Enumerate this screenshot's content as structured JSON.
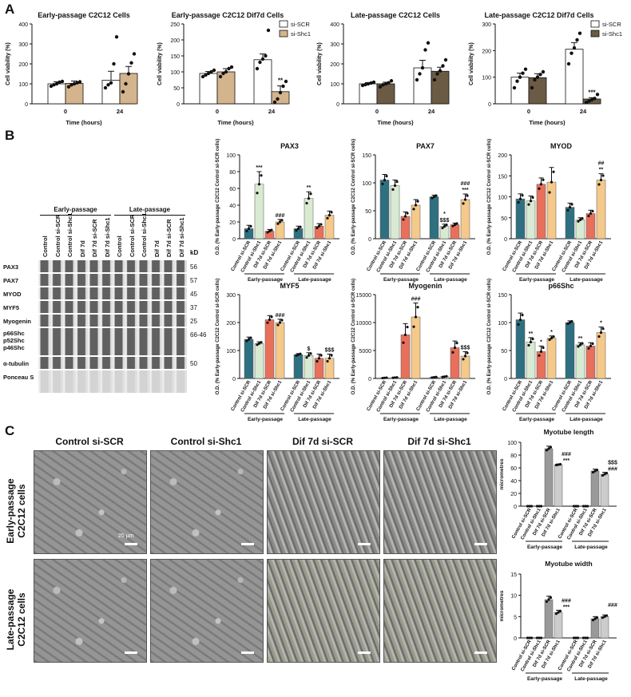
{
  "panel_labels": {
    "a": "A",
    "b": "B",
    "c": "C"
  },
  "viability": {
    "ylabel": "Cell viability (%)",
    "xlabel": "Time (hours)",
    "xticks": [
      "0",
      "24"
    ],
    "legend": [
      "si-SCR",
      "si-Shc1"
    ],
    "colors": {
      "scr": "#ffffff",
      "shc1_early": "#d4b48c",
      "shc1_late": "#6b5b45"
    },
    "charts": [
      {
        "title": "Early-passage C2C12 Cells",
        "ylim": [
          0,
          400
        ],
        "yticks": [
          "0",
          "100",
          "200",
          "300",
          "400"
        ],
        "values": [
          [
            100,
            102
          ],
          [
            118,
            152
          ]
        ],
        "errors": [
          [
            10,
            12
          ],
          [
            45,
            35
          ]
        ],
        "points": [
          [
            [
              88,
              95,
              100,
              108,
              112
            ],
            [
              85,
              95,
              100,
              105,
              110
            ]
          ],
          [
            [
              80,
              95,
              105,
              200,
              335
            ],
            [
              60,
              100,
              150,
              205,
              250
            ]
          ]
        ],
        "marks": [
          "",
          ""
        ],
        "legend": false,
        "dark": false
      },
      {
        "title": "Early-passage C2C12 Dif7d Cells",
        "ylim": [
          0,
          250
        ],
        "yticks": [
          "0",
          "50",
          "100",
          "150",
          "200",
          "250"
        ],
        "values": [
          [
            95,
            100
          ],
          [
            138,
            38
          ]
        ],
        "errors": [
          [
            6,
            10
          ],
          [
            18,
            18
          ]
        ],
        "points": [
          [
            [
              85,
              90,
              95,
              100,
              105
            ],
            [
              85,
              95,
              100,
              110,
              115
            ]
          ],
          [
            [
              110,
              130,
              140,
              150,
              230
            ],
            [
              5,
              15,
              35,
              55,
              70
            ]
          ]
        ],
        "marks": [
          "",
          "**"
        ],
        "legend": true,
        "dark": false
      },
      {
        "title": "Late-passage C2C12 Cells",
        "ylim": [
          0,
          400
        ],
        "yticks": [
          "0",
          "100",
          "200",
          "300",
          "400"
        ],
        "values": [
          [
            100,
            100
          ],
          [
            180,
            163
          ]
        ],
        "errors": [
          [
            6,
            8
          ],
          [
            38,
            20
          ]
        ],
        "points": [
          [
            [
              92,
              96,
              100,
              104,
              108
            ],
            [
              85,
              95,
              100,
              105,
              115
            ]
          ],
          [
            [
              120,
              150,
              180,
              270,
              305
            ],
            [
              120,
              150,
              165,
              190,
              220
            ]
          ]
        ],
        "marks": [
          "",
          ""
        ],
        "legend": false,
        "dark": true
      },
      {
        "title": "Late-passage C2C12 Dif7d Cells",
        "ylim": [
          0,
          300
        ],
        "yticks": [
          "0",
          "100",
          "200",
          "300"
        ],
        "values": [
          [
            100,
            98
          ],
          [
            205,
            18
          ]
        ],
        "errors": [
          [
            15,
            15
          ],
          [
            25,
            5
          ]
        ],
        "points": [
          [
            [
              60,
              85,
              100,
              115,
              130
            ],
            [
              60,
              90,
              100,
              110,
              120
            ]
          ],
          [
            [
              150,
              190,
              210,
              240,
              265
            ],
            [
              5,
              10,
              15,
              20,
              35
            ]
          ]
        ],
        "marks": [
          "",
          "***"
        ],
        "legend": true,
        "dark": true
      }
    ]
  },
  "blot": {
    "groups": [
      "Early-passage",
      "Late-passage"
    ],
    "lanes": [
      "Control",
      "Control si-SCR",
      "Control si-Shc1",
      "Dif 7d",
      "Dif 7d si-SCR",
      "Dif 7d si-Shc1",
      "Control",
      "Control si-SCR",
      "Control si-Shc1",
      "Dif 7d",
      "Dif 7d si-SCR",
      "Dif 7d si-Shc1"
    ],
    "kd_label": "kD",
    "rows": [
      {
        "name": "PAX3",
        "kd": "56"
      },
      {
        "name": "PAX7",
        "kd": "57"
      },
      {
        "name": "MYOD",
        "kd": "45"
      },
      {
        "name": "MYF5",
        "kd": "37"
      },
      {
        "name": "Myogenin",
        "kd": "25"
      },
      {
        "name": "p66Shc\np52Shc\np46Shc",
        "kd": "66-46"
      },
      {
        "name": "α-tubulin",
        "kd": "50"
      },
      {
        "name": "Ponceau S",
        "kd": ""
      }
    ]
  },
  "od_charts": {
    "ylabel": "O.D. (% Early-passage C2C12 Control si-SCR cells)",
    "categories": [
      "Control si-SCR",
      "Control si-Shc1",
      "Dif 7d si-SCR",
      "Dif 7d si-Shc1"
    ],
    "groups": [
      "Early-passage",
      "Late-passage"
    ],
    "colors": [
      "#2e7080",
      "#d8ebd2",
      "#e8705a",
      "#f5c98a"
    ],
    "charts": [
      {
        "title": "PAX3",
        "ylim": [
          0,
          100
        ],
        "yticks": [
          "0",
          "20",
          "40",
          "60",
          "80",
          "100"
        ],
        "values": [
          [
            12,
            65,
            9,
            20
          ],
          [
            12,
            48,
            15,
            28
          ]
        ],
        "errors": [
          [
            4,
            15,
            2,
            3
          ],
          [
            3,
            8,
            3,
            5
          ]
        ],
        "marks": [
          [
            "",
            "***",
            "",
            "###"
          ],
          [
            "",
            "**",
            "",
            ""
          ]
        ]
      },
      {
        "title": "PAX7",
        "ylim": [
          0,
          150
        ],
        "yticks": [
          "0",
          "50",
          "100",
          "150"
        ],
        "values": [
          [
            105,
            95,
            40,
            60
          ],
          [
            75,
            22,
            25,
            70
          ]
        ],
        "errors": [
          [
            10,
            10,
            8,
            10
          ],
          [
            3,
            4,
            3,
            10
          ]
        ],
        "marks": [
          [
            "",
            "",
            "",
            ""
          ],
          [
            "",
            "*\n$$$",
            "",
            "###\n***"
          ]
        ]
      },
      {
        "title": "MYOD",
        "ylim": [
          0,
          200
        ],
        "yticks": [
          "0",
          "50",
          "100",
          "150",
          "200"
        ],
        "values": [
          [
            95,
            90,
            130,
            135
          ],
          [
            75,
            45,
            60,
            140
          ]
        ],
        "errors": [
          [
            12,
            12,
            15,
            35
          ],
          [
            10,
            5,
            8,
            15
          ]
        ],
        "marks": [
          [
            "",
            "",
            "",
            ""
          ],
          [
            "",
            "",
            "",
            "##\n**"
          ]
        ]
      },
      {
        "title": "MYF5",
        "ylim": [
          0,
          300
        ],
        "yticks": [
          "0",
          "100",
          "200",
          "300"
        ],
        "values": [
          [
            140,
            125,
            210,
            200
          ],
          [
            85,
            82,
            72,
            72
          ]
        ],
        "errors": [
          [
            8,
            6,
            15,
            12
          ],
          [
            4,
            10,
            15,
            15
          ]
        ],
        "marks": [
          [
            "",
            "",
            "",
            "###"
          ],
          [
            "",
            "$",
            "",
            "$$$"
          ]
        ]
      },
      {
        "title": "Myogenin",
        "ylim": [
          0,
          15000
        ],
        "yticks": [
          "0",
          "5000",
          "10000",
          "15000"
        ],
        "values": [
          [
            100,
            150,
            7800,
            11000
          ],
          [
            200,
            300,
            5500,
            4000
          ]
        ],
        "errors": [
          [
            50,
            50,
            2000,
            2500
          ],
          [
            80,
            100,
            1200,
            800
          ]
        ],
        "marks": [
          [
            "",
            "",
            "",
            "###"
          ],
          [
            "",
            "",
            "",
            "$$$"
          ]
        ]
      },
      {
        "title": "p66Shc",
        "ylim": [
          0,
          150
        ],
        "yticks": [
          "0",
          "50",
          "100",
          "150"
        ],
        "values": [
          [
            105,
            65,
            48,
            72
          ],
          [
            100,
            60,
            58,
            82
          ]
        ],
        "errors": [
          [
            12,
            8,
            10,
            4
          ],
          [
            3,
            4,
            6,
            10
          ]
        ],
        "marks": [
          [
            "",
            "**",
            "*",
            "*"
          ],
          [
            "",
            "**",
            "",
            "*"
          ]
        ]
      }
    ]
  },
  "micrographs": {
    "columns": [
      "Control si-SCR",
      "Control si-Shc1",
      "Dif 7d si-SCR",
      "Dif 7d si-Shc1"
    ],
    "rows": [
      "Early-passage\nC2C12 cells",
      "Late-passage\nC2C12 cells"
    ],
    "scale_label": "25 µm"
  },
  "myotube": {
    "categories": [
      "Control si-SCR",
      "Control si-Shc1",
      "Dif 7d si-SCR",
      "Dif 7d si-Shc1"
    ],
    "groups": [
      "Early-passage",
      "Late-passage"
    ],
    "ylabel": "micrometres",
    "charts": [
      {
        "title": "Myotube length",
        "ylim": [
          0,
          100
        ],
        "yticks": [
          "0",
          "20",
          "40",
          "60",
          "80",
          "100"
        ],
        "values": [
          [
            0,
            0,
            90,
            65
          ],
          [
            0,
            0,
            55,
            50
          ]
        ],
        "errors": [
          [
            0,
            0,
            4,
            1
          ],
          [
            0,
            0,
            3,
            3
          ]
        ],
        "marks": [
          [
            "",
            "",
            "",
            "###\n***"
          ],
          [
            "",
            "",
            "",
            "$$$\n###"
          ]
        ]
      },
      {
        "title": "Myotube width",
        "ylim": [
          0,
          15
        ],
        "yticks": [
          "0",
          "5",
          "10",
          "15"
        ],
        "values": [
          [
            0,
            0,
            9,
            6
          ],
          [
            0,
            0,
            4.5,
            5
          ]
        ],
        "errors": [
          [
            0,
            0,
            0.8,
            0.5
          ],
          [
            0,
            0,
            0.5,
            0.4
          ]
        ],
        "marks": [
          [
            "",
            "",
            "",
            "###\n***"
          ],
          [
            "",
            "",
            "",
            "###"
          ]
        ]
      }
    ],
    "colors": [
      "#aaaaaa",
      "#dddddd",
      "#999999",
      "#cccccc"
    ]
  }
}
